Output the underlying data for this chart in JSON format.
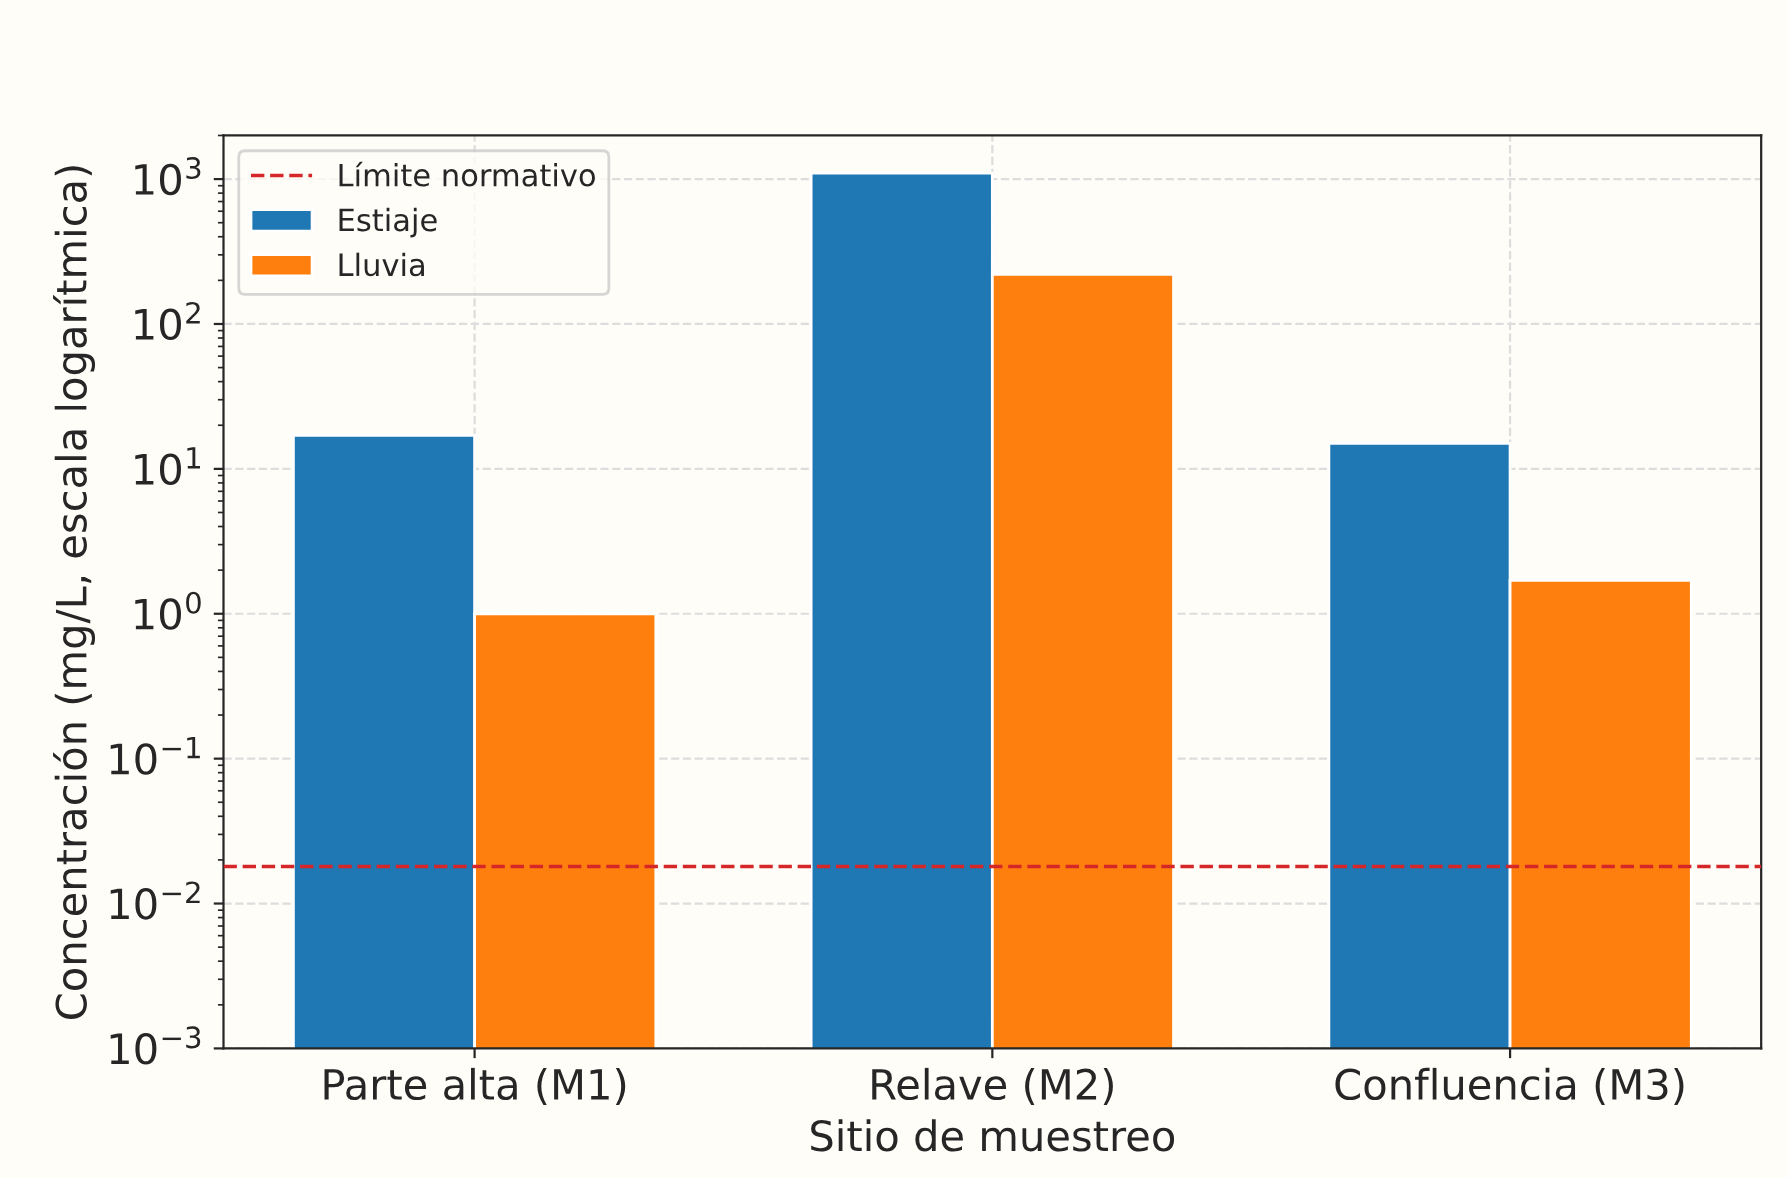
{
  "chart_data": {
    "type": "bar",
    "xlabel": "Sitio de muestreo",
    "ylabel": "Concentración (mg/L, escala logarítmica)",
    "categories": [
      "Parte alta (M1)",
      "Relave (M2)",
      "Confluencia (M3)"
    ],
    "series": [
      {
        "name": "Estiaje",
        "color": "#1f77b4",
        "values": [
          17,
          1100,
          15
        ]
      },
      {
        "name": "Lluvia",
        "color": "#ff7f0e",
        "values": [
          1.0,
          220,
          1.7
        ]
      }
    ],
    "log": true,
    "ylim": [
      0.001,
      2000
    ],
    "yticks": [
      {
        "value": 0.001,
        "label": "10$^{−3}$"
      },
      {
        "value": 0.01,
        "label": "10$^{−2}$"
      },
      {
        "value": 0.1,
        "label": "10$^{−1}$"
      },
      {
        "value": 1,
        "label": "10$^{0}$"
      },
      {
        "value": 10,
        "label": "10$^{1}$"
      },
      {
        "value": 100,
        "label": "10$^{2}$"
      },
      {
        "value": 1000,
        "label": "10$^{3}$"
      }
    ],
    "ref_lines": [
      {
        "axis": "y",
        "value": 0.018,
        "label": "Límite normativo",
        "color": "#d62728",
        "line_style": "dashed"
      }
    ],
    "grid": true,
    "legend": "top left"
  }
}
